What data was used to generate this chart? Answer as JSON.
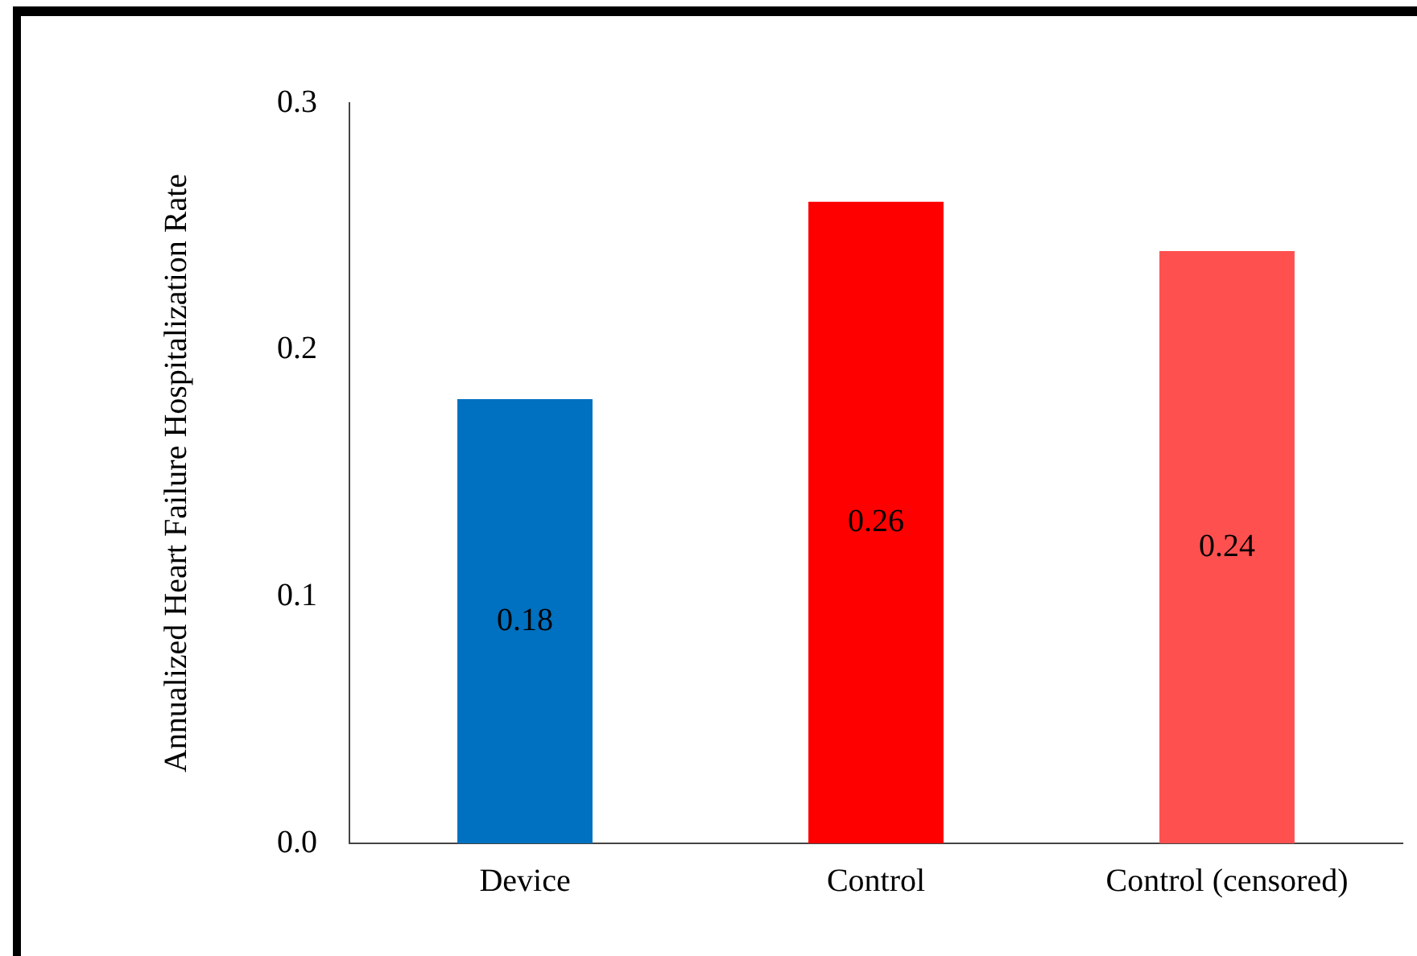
{
  "chart_data": {
    "type": "bar",
    "ylabel": "Annualized Heart Failure Hospitalization Rate",
    "categories": [
      "Device",
      "Control",
      "Control (censored)"
    ],
    "values": [
      0.18,
      0.26,
      0.24
    ],
    "colors": [
      "#0070c0",
      "#ff0000",
      "#ff5050"
    ],
    "ylim": [
      0,
      0.3
    ],
    "yticks": [
      {
        "value": 0,
        "label": "0.0"
      },
      {
        "value": 0.1,
        "label": "0.1"
      },
      {
        "value": 0.2,
        "label": "0.2"
      },
      {
        "value": 0.3,
        "label": "0.3"
      }
    ],
    "grid": false,
    "legend": false,
    "data_labels": true
  }
}
